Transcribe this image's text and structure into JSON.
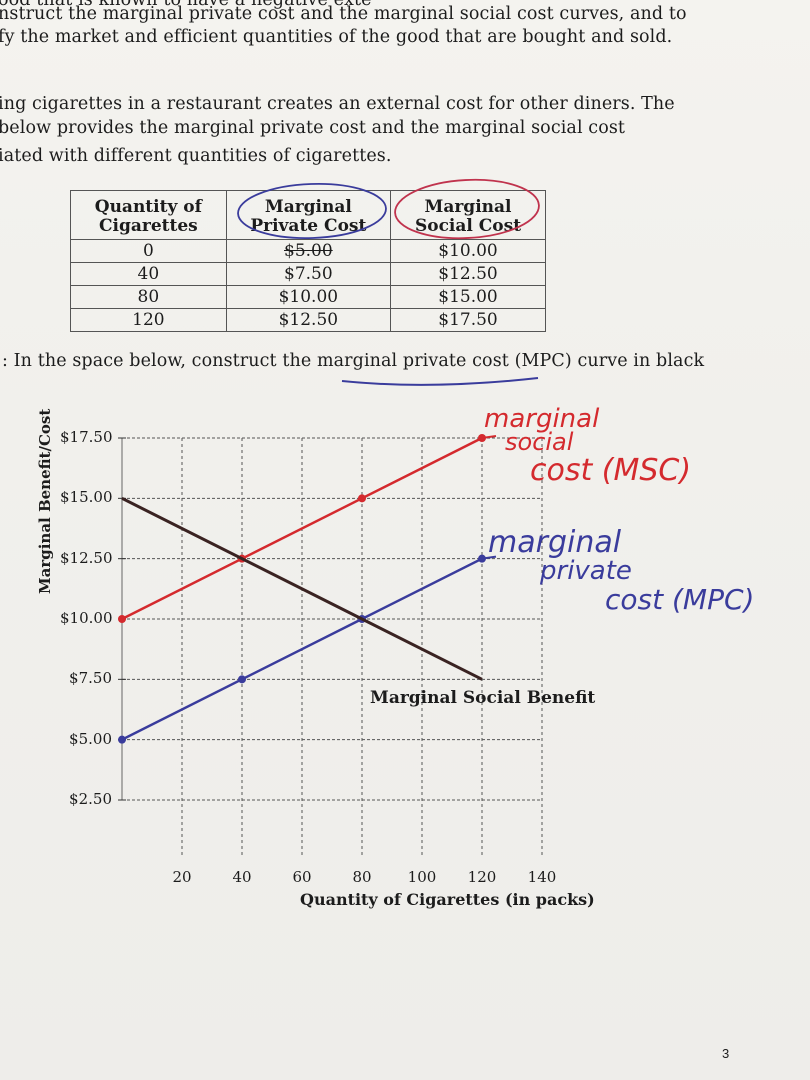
{
  "intro": {
    "line0": "ood that is known to have a negative exte",
    "line1": "nstruct the marginal private cost and the marginal social cost curves, and to",
    "line2": "fy the market and efficient quantities of the good that are bought and sold."
  },
  "paragraph": {
    "line1": "ing cigarettes in a restaurant creates an external cost for other diners. The",
    "line2": "below provides the marginal private cost and the marginal social cost",
    "line3": "iated with different quantities of cigarettes."
  },
  "table": {
    "headers": [
      "Quantity of Cigarettes",
      "Marginal Private Cost",
      "Marginal Social Cost"
    ],
    "rows": [
      [
        "0",
        "$5.00",
        "$10.00"
      ],
      [
        "40",
        "$7.50",
        "$12.50"
      ],
      [
        "80",
        "$10.00",
        "$15.00"
      ],
      [
        "120",
        "$12.50",
        "$17.50"
      ]
    ]
  },
  "instruction": ": In the space below, construct the marginal private cost (MPC) curve in black",
  "chart_data": {
    "type": "line",
    "xlabel": "Quantity of Cigarettes (in packs)",
    "ylabel": "Marginal Benefit/Cost",
    "x_ticks": [
      "20",
      "40",
      "60",
      "80",
      "100",
      "120",
      "140"
    ],
    "y_ticks": [
      "$17.50",
      "$15.00",
      "$12.50",
      "$10.00",
      "$7.50",
      "$5.00",
      "$2.50"
    ],
    "xlim": [
      0,
      140
    ],
    "ylim": [
      2.5,
      17.5
    ],
    "grid": true,
    "series": [
      {
        "name": "marginal social cost (MSC)",
        "color": "#d42a2e",
        "x": [
          0,
          40,
          80,
          120
        ],
        "y": [
          10.0,
          12.5,
          15.0,
          17.5
        ]
      },
      {
        "name": "marginal private cost (MPC)",
        "color": "#3a3c9c",
        "x": [
          0,
          40,
          80,
          120
        ],
        "y": [
          5.0,
          7.5,
          10.0,
          12.5
        ]
      },
      {
        "name": "Marginal Social Benefit",
        "color": "#3a2322",
        "x": [
          0,
          80,
          120
        ],
        "y": [
          15.0,
          10.0,
          7.5
        ]
      }
    ]
  },
  "annotations": {
    "msc_line1": "marginal",
    "msc_line2": "social",
    "msc_line3": "cost (MSC)",
    "mpc_line1": "marginal",
    "mpc_line2": "private",
    "mpc_line3": "cost (MPC)",
    "msb_label": "Marginal Social Benefit"
  },
  "page_number": "3"
}
